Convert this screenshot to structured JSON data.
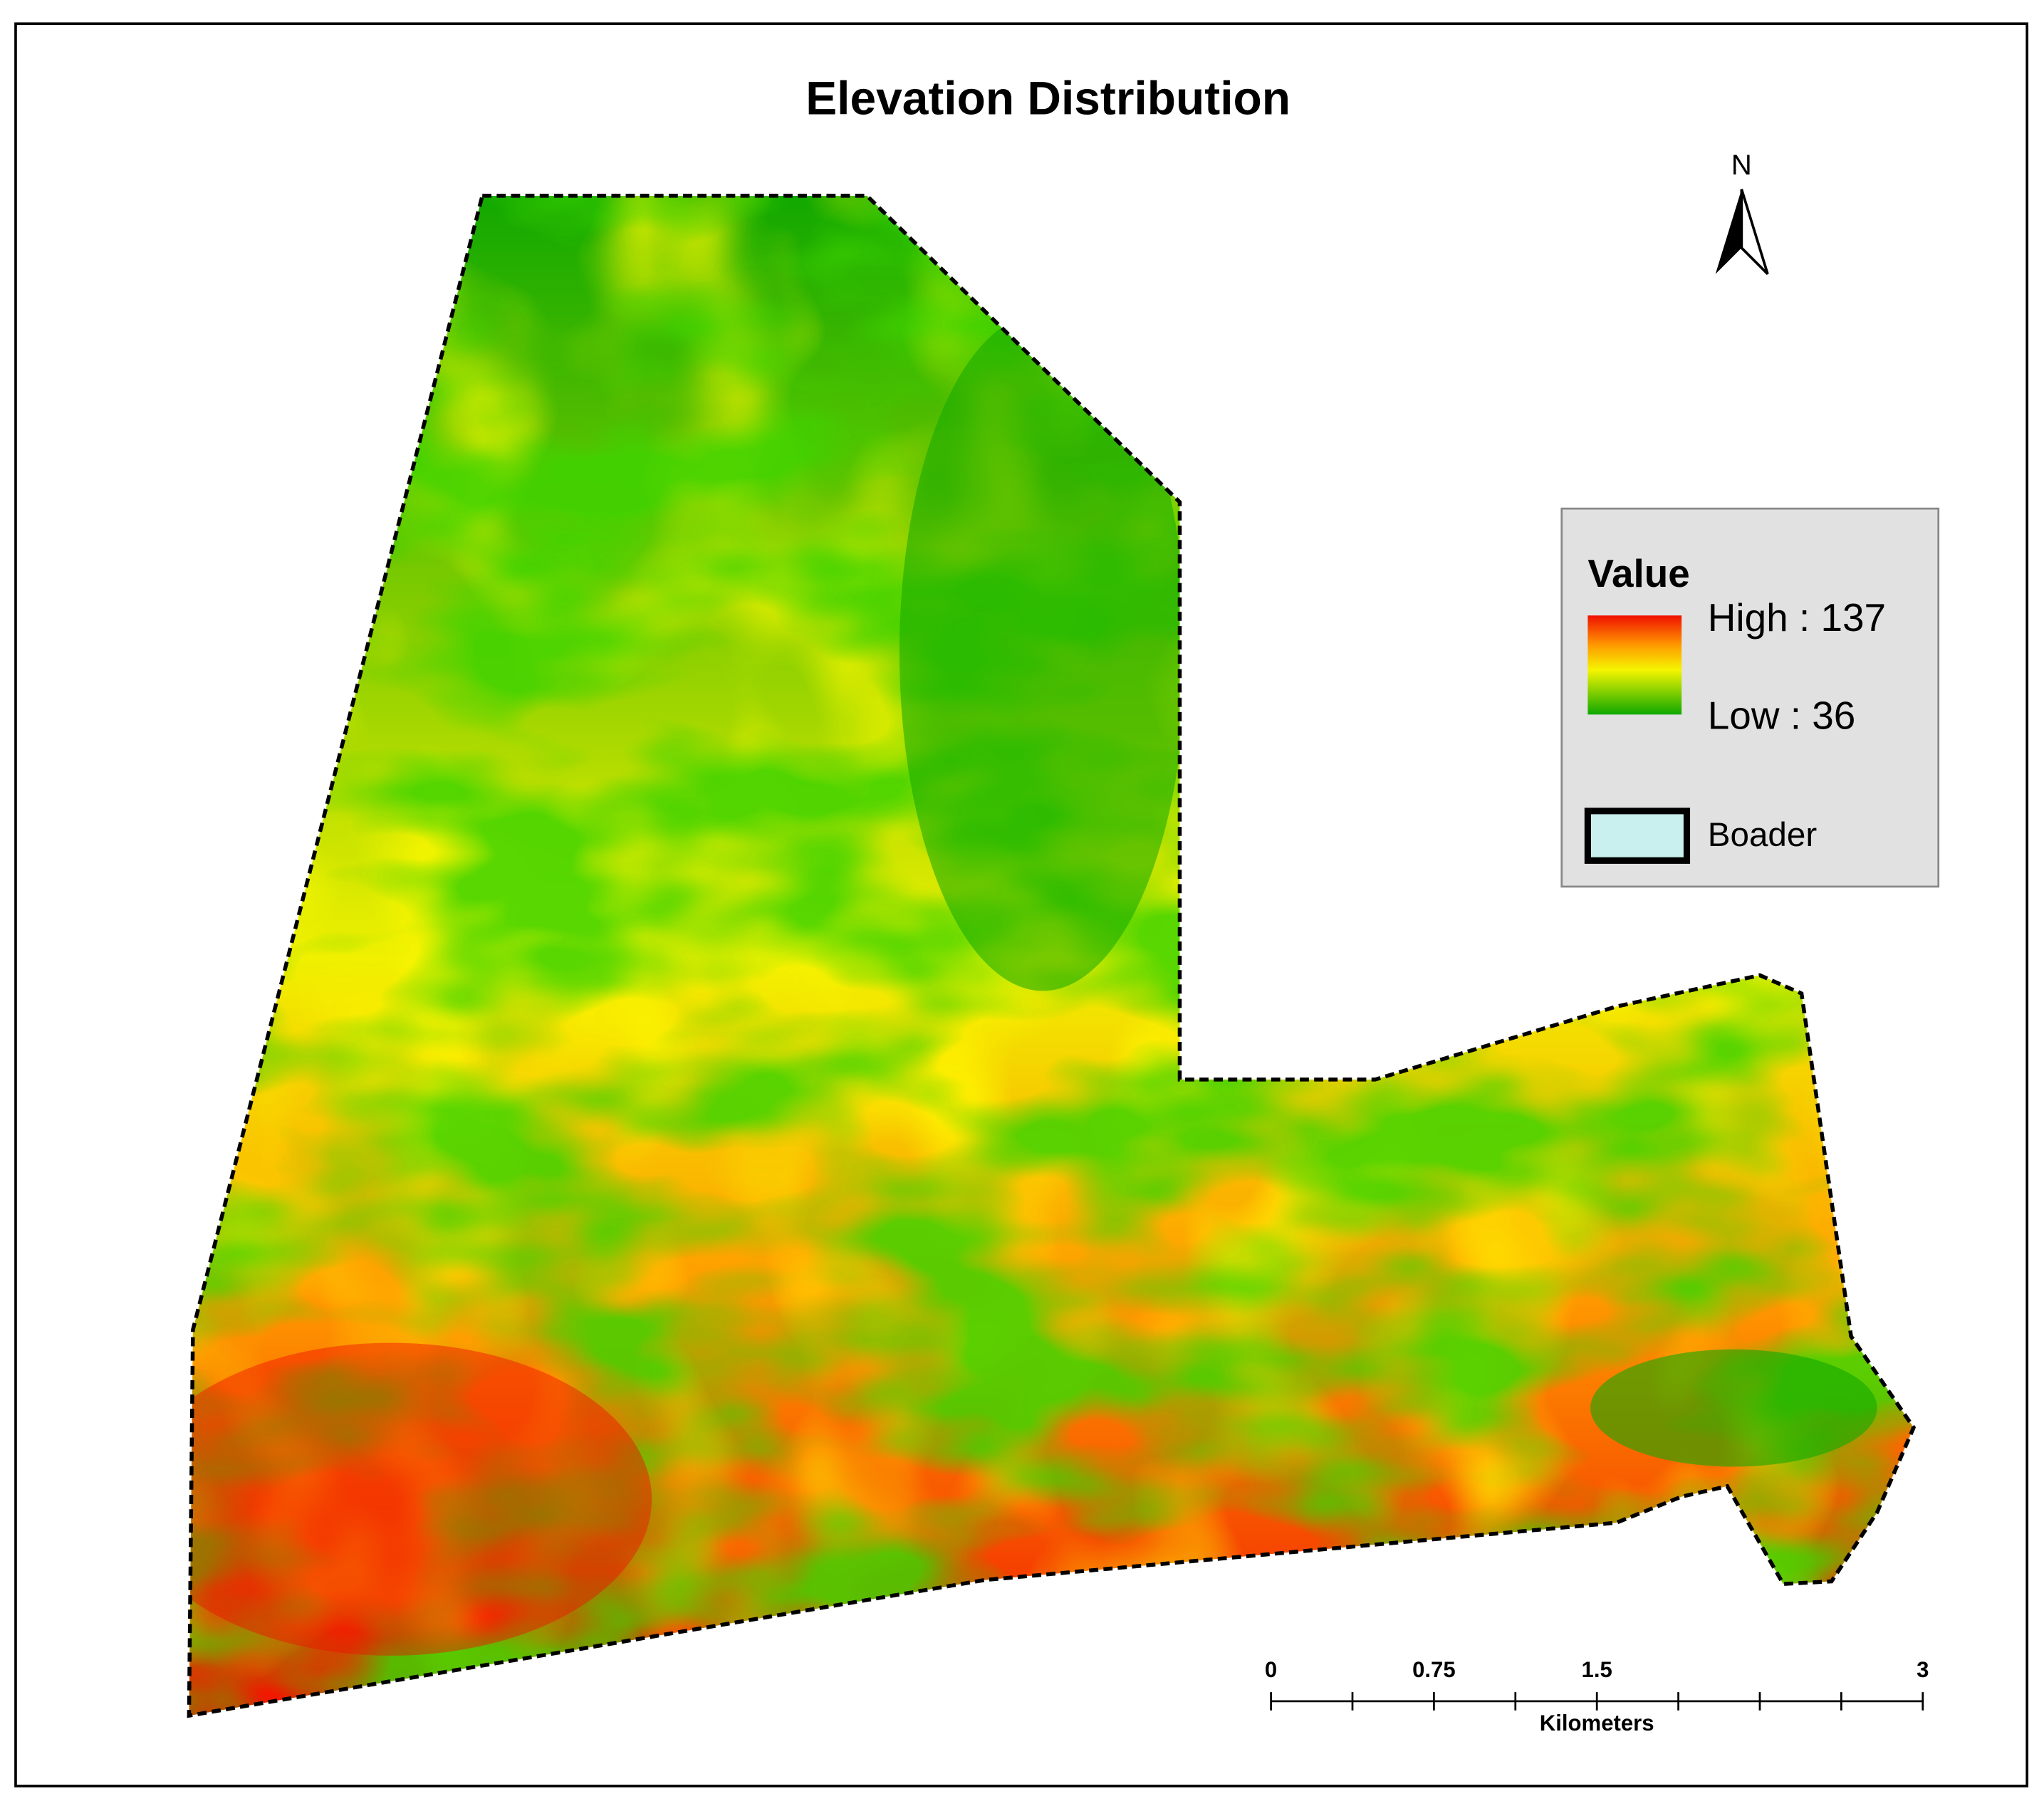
{
  "title": "Elevation Distribution",
  "north_arrow": {
    "label": "N"
  },
  "legend": {
    "title": "Value",
    "high": "High : 137",
    "low": "Low : 36",
    "border_label": "Boader"
  },
  "scale_bar": {
    "labels": [
      "0",
      "0.75",
      "1.5",
      "3"
    ],
    "unit": "Kilometers"
  }
}
